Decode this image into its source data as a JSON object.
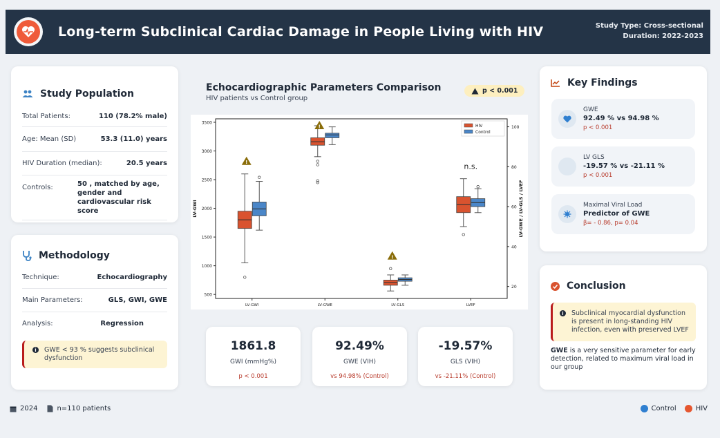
{
  "header": {
    "title": "Long-term Subclinical Cardiac Damage in People Living with HIV",
    "study_type": "Study Type: Cross-sectional",
    "duration": "Duration: 2022-2023",
    "logo_icon": "heart-pulse-icon"
  },
  "population": {
    "title": "Study Population",
    "rows": [
      {
        "k": "Total Patients:",
        "v": "110 (78.2% male)"
      },
      {
        "k": "Age: Mean (SD)",
        "v": "53.3 (11.0) years"
      },
      {
        "k": "HIV Duration (median):",
        "v": "20.5 years"
      },
      {
        "k": "Controls:",
        "v": "50 , matched by age, gender and cardiovascular risk score"
      }
    ]
  },
  "methodology": {
    "title": "Methodology",
    "rows": [
      {
        "k": "Technique:",
        "v": "Echocardiography"
      },
      {
        "k": "Main Parameters:",
        "v": "GLS, GWI, GWE"
      },
      {
        "k": "Analysis:",
        "v": "Regression"
      }
    ],
    "note": "GWE < 93 % suggests subclinical dysfunction"
  },
  "chart": {
    "title": "Echocardiographic Parameters Comparison",
    "subtitle": "HIV patients vs Control group",
    "pill": "p < 0.001"
  },
  "chart_data": {
    "type": "boxplot",
    "categories": [
      "LV-GWI",
      "LV-GWE",
      "LV-GLS",
      "LVEF"
    ],
    "ylabel_left": "LV-GWI",
    "ylabel_right": "LV-GWE / LV-GLS / LVEF",
    "ylim_left": [
      430,
      3560
    ],
    "yticks_left": [
      500,
      1000,
      1500,
      2000,
      2500,
      3000,
      3500
    ],
    "ylim_right": [
      14,
      104
    ],
    "yticks_right": [
      20,
      40,
      60,
      80,
      100
    ],
    "legend": [
      "HIV",
      "Control"
    ],
    "legend_position": "top-right",
    "colors": {
      "HIV": "#d9532f",
      "Control": "#4a86c8"
    },
    "annotations": [
      {
        "category": "LV-GWI",
        "text": "warning"
      },
      {
        "category": "LV-GWE",
        "text": "warning"
      },
      {
        "category": "LV-GLS",
        "text": "warning"
      },
      {
        "category": "LVEF",
        "text": "n.s."
      }
    ],
    "series": [
      {
        "name": "HIV",
        "boxes": [
          {
            "axis": "left",
            "whislo": 1050,
            "q1": 1650,
            "med": 1800,
            "q3": 1950,
            "whishi": 2600,
            "fliers": [
              800
            ]
          },
          {
            "axis": "left",
            "whislo": 2900,
            "q1": 3100,
            "med": 3160,
            "q3": 3230,
            "whishi": 3440,
            "fliers": [
              2760,
              2820,
              2480,
              2450
            ]
          },
          {
            "axis": "left",
            "whislo": 560,
            "q1": 660,
            "med": 710,
            "q3": 750,
            "whishi": 840,
            "fliers": [
              950
            ]
          },
          {
            "axis": "right",
            "whislo": 50,
            "q1": 57,
            "med": 61,
            "q3": 65,
            "whishi": 74,
            "fliers": [
              46
            ]
          }
        ]
      },
      {
        "name": "Control",
        "boxes": [
          {
            "axis": "left",
            "whislo": 1620,
            "q1": 1870,
            "med": 1990,
            "q3": 2110,
            "whishi": 2470,
            "fliers": [
              2540
            ]
          },
          {
            "axis": "left",
            "whislo": 3110,
            "q1": 3230,
            "med": 3280,
            "q3": 3310,
            "whishi": 3420,
            "fliers": []
          },
          {
            "axis": "left",
            "whislo": 660,
            "q1": 730,
            "med": 760,
            "q3": 790,
            "whishi": 840,
            "fliers": []
          },
          {
            "axis": "right",
            "whislo": 57,
            "q1": 60,
            "med": 62,
            "q3": 64,
            "whishi": 69,
            "fliers": [
              70
            ]
          }
        ]
      }
    ]
  },
  "stats": [
    {
      "value": "1861.8",
      "label": "GWI (mmHg%)",
      "sub": "p < 0.001"
    },
    {
      "value": "92.49%",
      "label": "GWE (VIH)",
      "sub": "vs 94.98% (Control)"
    },
    {
      "value": "-19.57%",
      "label": "GLS (VIH)",
      "sub": "vs -21.11% (Control)"
    }
  ],
  "findings": {
    "title": "Key Findings",
    "items": [
      {
        "icon": "heart-icon",
        "label": "GWE",
        "value": "92.49 % vs 94.98 %",
        "sub": "p < 0.001"
      },
      {
        "icon": "circle-icon",
        "label": "LV GLS",
        "value": "-19.57 % vs -21.11 %",
        "sub": "p < 0.001"
      },
      {
        "icon": "virus-icon",
        "label": "Maximal Viral Load",
        "value": "Predictor of GWE",
        "sub": "β= - 0.86, p= 0.04"
      }
    ]
  },
  "conclusion": {
    "title": "Conclusion",
    "note": "Subclinical myocardial dysfunction is present in long-standing HIV infection, even with preserved LVEF",
    "bold": "GWE",
    "text": " is a very sensitive parameter for early detection, related to maximum viral load in our group"
  },
  "footer": {
    "year": "2024",
    "patients": "n=110 patients",
    "legend_control": "Control",
    "legend_hiv": "HIV",
    "control_color": "#2f7fd0",
    "hiv_color": "#e5562f"
  }
}
